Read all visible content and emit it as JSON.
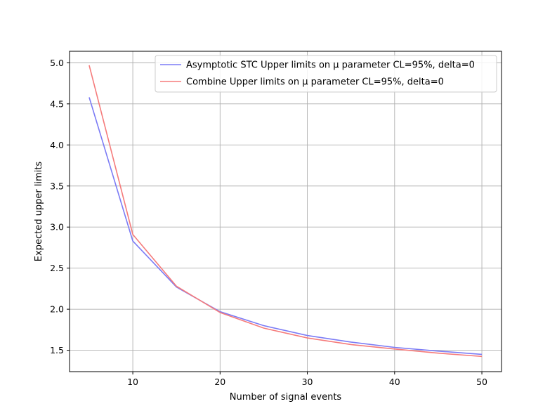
{
  "chart_data": {
    "type": "line",
    "title": "",
    "xlabel": "Number of signal events",
    "ylabel": "Expected upper limits",
    "xlim": [
      2.75,
      52.25
    ],
    "ylim": [
      1.24,
      5.14
    ],
    "x_ticks": [
      10,
      20,
      30,
      40,
      50
    ],
    "x_tick_labels": [
      "10",
      "20",
      "30",
      "40",
      "50"
    ],
    "y_ticks": [
      1.5,
      2.0,
      2.5,
      3.0,
      3.5,
      4.0,
      4.5,
      5.0
    ],
    "y_tick_labels": [
      "1.5",
      "2.0",
      "2.5",
      "3.0",
      "3.5",
      "4.0",
      "4.5",
      "5.0"
    ],
    "grid": true,
    "legend_position": "top-right",
    "x": [
      5,
      10,
      15,
      20,
      25,
      30,
      35,
      40,
      45,
      50
    ],
    "series": [
      {
        "name": "Asymptotic STC Upper limits on μ parameter CL=95%, delta=0",
        "color": "#7b7bf5",
        "values": [
          4.58,
          2.83,
          2.27,
          1.97,
          1.8,
          1.68,
          1.6,
          1.535,
          1.49,
          1.45
        ]
      },
      {
        "name": "Combine Upper limits on μ parameter CL=95%, delta=0",
        "color": "#f57b7b",
        "values": [
          4.97,
          2.91,
          2.28,
          1.96,
          1.77,
          1.65,
          1.57,
          1.515,
          1.465,
          1.425
        ]
      }
    ]
  }
}
